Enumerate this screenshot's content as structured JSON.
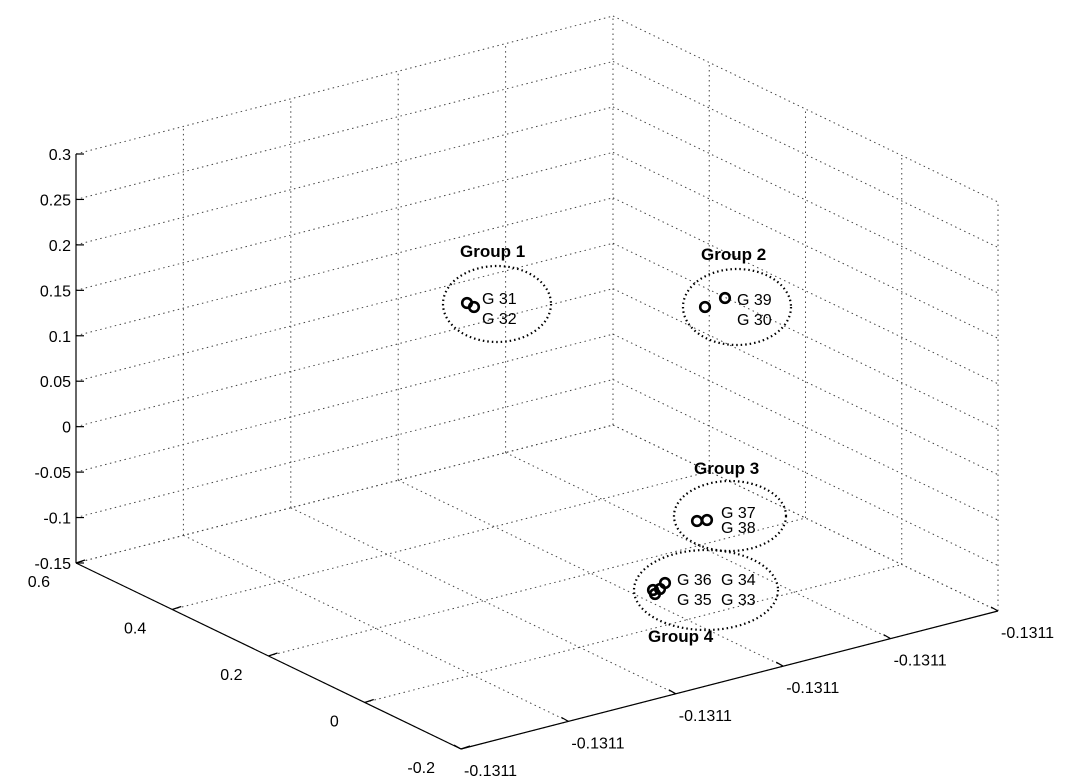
{
  "chart_data": {
    "type": "scatter3d",
    "title": "",
    "xlabel": "",
    "ylabel": "",
    "zlabel": "",
    "grid": true,
    "z_ticks": [
      "0.3",
      "0.25",
      "0.2",
      "0.15",
      "0.1",
      "0.05",
      "0",
      "-0.05",
      "-0.1",
      "-0.15"
    ],
    "y_ticks": [
      "0.6",
      "0.4",
      "0.2",
      "0",
      "-0.2"
    ],
    "x_ticks": [
      "-0.1311",
      "-0.1311",
      "-0.1311",
      "-0.1311",
      "-0.1311",
      "-0.1311"
    ],
    "groups": [
      {
        "name": "Group 1",
        "members": [
          "G 31",
          "G 32"
        ]
      },
      {
        "name": "Group 2",
        "members": [
          "G 39",
          "G 30"
        ]
      },
      {
        "name": "Group 3",
        "members": [
          "G 37",
          "G 38"
        ]
      },
      {
        "name": "Group 4",
        "members": [
          "G 36",
          "G 34",
          "G 35",
          "G 33"
        ]
      }
    ]
  }
}
